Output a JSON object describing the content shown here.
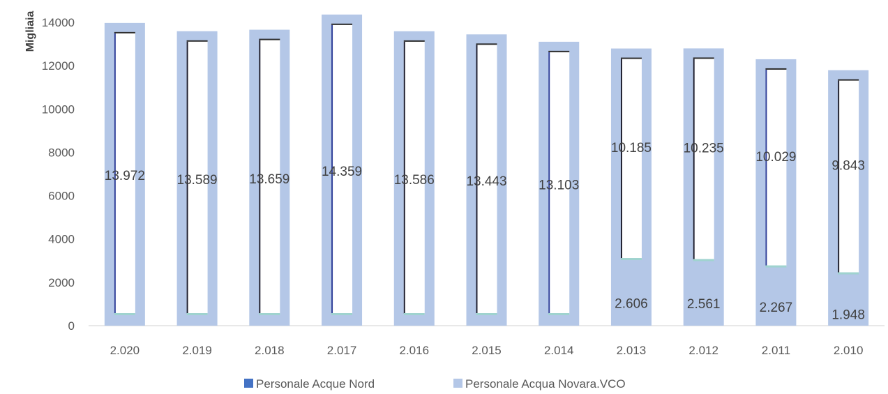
{
  "chart_data": {
    "type": "bar",
    "stacked": true,
    "ylabel": "Migliaia",
    "ylim": [
      0,
      14000
    ],
    "yticks": [
      "0",
      "2000",
      "4000",
      "6000",
      "8000",
      "10000",
      "12000",
      "14000"
    ],
    "categories": [
      "2.020",
      "2.019",
      "2.018",
      "2.017",
      "2.016",
      "2.015",
      "2.014",
      "2.013",
      "2.012",
      "2.011",
      "2.010"
    ],
    "series": [
      {
        "name": "Personale Acque Nord",
        "color": "#4472C4",
        "values": [
          13972,
          13589,
          13659,
          14359,
          13586,
          13443,
          13103,
          10185,
          10235,
          10029,
          9843
        ],
        "labels": [
          "13.972",
          "13.589",
          "13.659",
          "14.359",
          "13.586",
          "13.443",
          "13.103",
          "10.185",
          "10.235",
          "10.029",
          "9.843"
        ]
      },
      {
        "name": "Personale Acqua Novara.VCO",
        "color": "#B4C7E7",
        "values": [
          0,
          0,
          0,
          0,
          0,
          0,
          0,
          2606,
          2561,
          2267,
          1948
        ],
        "labels": [
          "",
          "",
          "",
          "",
          "",
          "",
          "",
          "2.606",
          "2.561",
          "2.267",
          "1.948"
        ]
      }
    ],
    "grid": false,
    "legend": "bottom"
  }
}
